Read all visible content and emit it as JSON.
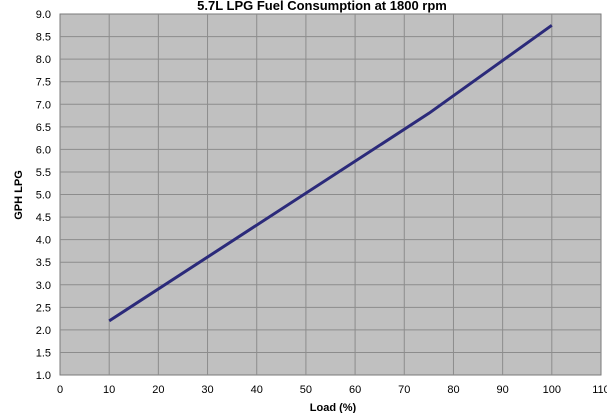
{
  "chart_data": {
    "type": "line",
    "title": "5.7L LPG Fuel Consumption at 1800 rpm",
    "xlabel": "Load (%)",
    "ylabel": "GPH LPG",
    "xlim": [
      0,
      110
    ],
    "ylim": [
      1.0,
      9.0
    ],
    "x_ticks": [
      "0",
      "10",
      "20",
      "30",
      "40",
      "50",
      "60",
      "70",
      "80",
      "90",
      "100",
      "110"
    ],
    "y_ticks": [
      "1.0",
      "1.5",
      "2.0",
      "2.5",
      "3.0",
      "3.5",
      "4.0",
      "4.5",
      "5.0",
      "5.5",
      "6.0",
      "6.5",
      "7.0",
      "7.5",
      "8.0",
      "8.5",
      "9.0"
    ],
    "grid": true,
    "legend": "none",
    "series": [
      {
        "x": [
          10,
          75,
          100
        ],
        "y": [
          2.2,
          6.8,
          8.75
        ],
        "color": "#2b2a7a"
      }
    ],
    "plot_background": "#c0c0c0",
    "grid_color": "#8c8c8c"
  }
}
